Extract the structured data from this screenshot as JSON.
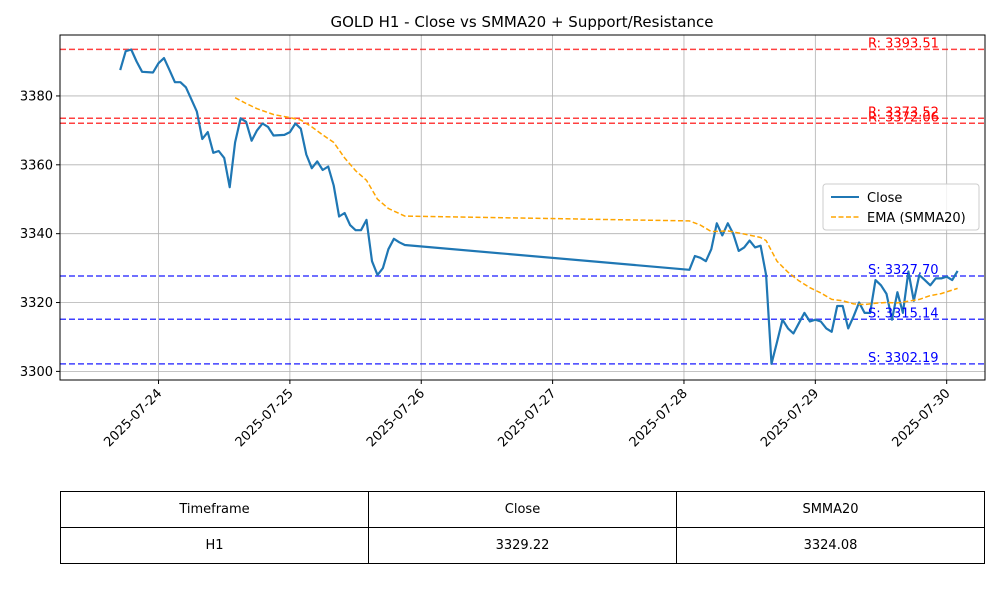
{
  "chart_data": {
    "type": "line",
    "title": "GOLD H1 - Close vs SMMA20 + Support/Resistance",
    "xlabel": "",
    "ylabel": "",
    "x_ticks": [
      "2025-07-24",
      "2025-07-25",
      "2025-07-26",
      "2025-07-27",
      "2025-07-28",
      "2025-07-29",
      "2025-07-30"
    ],
    "xlim": [
      "2025-07-23 06:00",
      "2025-07-30 07:00"
    ],
    "y_ticks": [
      3300,
      3320,
      3340,
      3360,
      3380
    ],
    "ylim": [
      3297.5,
      3397.7
    ],
    "grid": true,
    "legend_position": "center-right",
    "series": [
      {
        "name": "Close",
        "style": "solid",
        "color": "#1f77b4",
        "points": [
          [
            "2025-07-23 17:00",
            3387.5
          ],
          [
            "2025-07-23 18:00",
            3393.0
          ],
          [
            "2025-07-23 19:00",
            3393.5
          ],
          [
            "2025-07-23 20:00",
            3390.0
          ],
          [
            "2025-07-23 21:00",
            3387.0
          ],
          [
            "2025-07-23 23:00",
            3386.8
          ],
          [
            "2025-07-24 00:00",
            3389.5
          ],
          [
            "2025-07-24 01:00",
            3391.0
          ],
          [
            "2025-07-24 02:00",
            3387.5
          ],
          [
            "2025-07-24 03:00",
            3384.0
          ],
          [
            "2025-07-24 04:00",
            3384.0
          ],
          [
            "2025-07-24 05:00",
            3382.5
          ],
          [
            "2025-07-24 06:00",
            3379.0
          ],
          [
            "2025-07-24 07:00",
            3375.5
          ],
          [
            "2025-07-24 08:00",
            3367.5
          ],
          [
            "2025-07-24 09:00",
            3369.5
          ],
          [
            "2025-07-24 10:00",
            3363.5
          ],
          [
            "2025-07-24 11:00",
            3364.0
          ],
          [
            "2025-07-24 12:00",
            3362.0
          ],
          [
            "2025-07-24 13:00",
            3353.5
          ],
          [
            "2025-07-24 14:00",
            3366.5
          ],
          [
            "2025-07-24 15:00",
            3373.5
          ],
          [
            "2025-07-24 16:00",
            3372.5
          ],
          [
            "2025-07-24 17:00",
            3367.0
          ],
          [
            "2025-07-24 18:00",
            3370.0
          ],
          [
            "2025-07-24 19:00",
            3372.0
          ],
          [
            "2025-07-24 20:00",
            3371.0
          ],
          [
            "2025-07-24 21:00",
            3368.5
          ],
          [
            "2025-07-24 23:00",
            3368.7
          ],
          [
            "2025-07-25 00:00",
            3369.5
          ],
          [
            "2025-07-25 01:00",
            3372.0
          ],
          [
            "2025-07-25 02:00",
            3370.5
          ],
          [
            "2025-07-25 03:00",
            3363.0
          ],
          [
            "2025-07-25 04:00",
            3359.0
          ],
          [
            "2025-07-25 05:00",
            3361.0
          ],
          [
            "2025-07-25 06:00",
            3358.5
          ],
          [
            "2025-07-25 07:00",
            3359.5
          ],
          [
            "2025-07-25 08:00",
            3354.0
          ],
          [
            "2025-07-25 09:00",
            3345.0
          ],
          [
            "2025-07-25 10:00",
            3346.0
          ],
          [
            "2025-07-25 11:00",
            3342.5
          ],
          [
            "2025-07-25 12:00",
            3341.0
          ],
          [
            "2025-07-25 13:00",
            3341.0
          ],
          [
            "2025-07-25 14:00",
            3344.0
          ],
          [
            "2025-07-25 15:00",
            3332.0
          ],
          [
            "2025-07-25 16:00",
            3328.0
          ],
          [
            "2025-07-25 17:00",
            3330.0
          ],
          [
            "2025-07-25 18:00",
            3335.5
          ],
          [
            "2025-07-25 19:00",
            3338.5
          ],
          [
            "2025-07-25 20:00",
            3337.5
          ],
          [
            "2025-07-25 21:00",
            3336.7
          ],
          [
            "2025-07-28 01:00",
            3329.5
          ],
          [
            "2025-07-28 02:00",
            3333.5
          ],
          [
            "2025-07-28 03:00",
            3333.0
          ],
          [
            "2025-07-28 04:00",
            3332.0
          ],
          [
            "2025-07-28 05:00",
            3335.5
          ],
          [
            "2025-07-28 06:00",
            3343.0
          ],
          [
            "2025-07-28 07:00",
            3339.5
          ],
          [
            "2025-07-28 08:00",
            3343.0
          ],
          [
            "2025-07-28 09:00",
            3340.0
          ],
          [
            "2025-07-28 10:00",
            3335.0
          ],
          [
            "2025-07-28 11:00",
            3336.0
          ],
          [
            "2025-07-28 12:00",
            3338.0
          ],
          [
            "2025-07-28 13:00",
            3336.0
          ],
          [
            "2025-07-28 14:00",
            3336.5
          ],
          [
            "2025-07-28 15:00",
            3328.0
          ],
          [
            "2025-07-28 16:00",
            3302.2
          ],
          [
            "2025-07-28 17:00",
            3308.5
          ],
          [
            "2025-07-28 18:00",
            3315.0
          ],
          [
            "2025-07-28 19:00",
            3312.5
          ],
          [
            "2025-07-28 20:00",
            3311.0
          ],
          [
            "2025-07-28 21:00",
            3314.0
          ],
          [
            "2025-07-28 22:00",
            3317.0
          ],
          [
            "2025-07-28 23:00",
            3314.5
          ],
          [
            "2025-07-29 00:00",
            3315.0
          ],
          [
            "2025-07-29 01:00",
            3314.5
          ],
          [
            "2025-07-29 02:00",
            3312.5
          ],
          [
            "2025-07-29 03:00",
            3311.5
          ],
          [
            "2025-07-29 04:00",
            3319.0
          ],
          [
            "2025-07-29 05:00",
            3319.0
          ],
          [
            "2025-07-29 06:00",
            3312.5
          ],
          [
            "2025-07-29 07:00",
            3316.0
          ],
          [
            "2025-07-29 08:00",
            3320.0
          ],
          [
            "2025-07-29 09:00",
            3317.0
          ],
          [
            "2025-07-29 10:00",
            3317.0
          ],
          [
            "2025-07-29 11:00",
            3326.5
          ],
          [
            "2025-07-29 12:00",
            3325.0
          ],
          [
            "2025-07-29 13:00",
            3322.5
          ],
          [
            "2025-07-29 14:00",
            3315.0
          ],
          [
            "2025-07-29 15:00",
            3323.0
          ],
          [
            "2025-07-29 16:00",
            3317.0
          ],
          [
            "2025-07-29 17:00",
            3329.0
          ],
          [
            "2025-07-29 18:00",
            3320.5
          ],
          [
            "2025-07-29 19:00",
            3328.0
          ],
          [
            "2025-07-29 20:00",
            3326.5
          ],
          [
            "2025-07-29 21:00",
            3325.0
          ],
          [
            "2025-07-29 22:00",
            3327.0
          ],
          [
            "2025-07-29 23:00",
            3327.0
          ],
          [
            "2025-07-30 00:00",
            3327.5
          ],
          [
            "2025-07-30 01:00",
            3326.5
          ],
          [
            "2025-07-30 02:00",
            3329.2
          ]
        ]
      },
      {
        "name": "EMA (SMMA20)",
        "style": "dashed",
        "color": "#ffa500",
        "points": [
          [
            "2025-07-24 14:00",
            3379.5
          ],
          [
            "2025-07-24 16:00",
            3377.8
          ],
          [
            "2025-07-24 18:00",
            3376.3
          ],
          [
            "2025-07-24 21:00",
            3374.6
          ],
          [
            "2025-07-25 00:00",
            3373.7
          ],
          [
            "2025-07-25 02:00",
            3373.0
          ],
          [
            "2025-07-25 04:00",
            3371.0
          ],
          [
            "2025-07-25 06:00",
            3368.7
          ],
          [
            "2025-07-25 08:00",
            3366.5
          ],
          [
            "2025-07-25 10:00",
            3362.0
          ],
          [
            "2025-07-25 12:00",
            3358.3
          ],
          [
            "2025-07-25 14:00",
            3355.5
          ],
          [
            "2025-07-25 16:00",
            3350.0
          ],
          [
            "2025-07-25 18:00",
            3347.3
          ],
          [
            "2025-07-25 21:00",
            3345.1
          ],
          [
            "2025-07-28 01:00",
            3343.7
          ],
          [
            "2025-07-28 03:00",
            3342.5
          ],
          [
            "2025-07-28 05:00",
            3340.6
          ],
          [
            "2025-07-28 08:00",
            3340.8
          ],
          [
            "2025-07-28 11:00",
            3339.9
          ],
          [
            "2025-07-28 14:00",
            3338.9
          ],
          [
            "2025-07-28 15:00",
            3338.0
          ],
          [
            "2025-07-28 17:00",
            3332.0
          ],
          [
            "2025-07-28 19:00",
            3328.8
          ],
          [
            "2025-07-28 21:00",
            3326.3
          ],
          [
            "2025-07-28 23:00",
            3324.3
          ],
          [
            "2025-07-29 01:00",
            3322.8
          ],
          [
            "2025-07-29 03:00",
            3320.9
          ],
          [
            "2025-07-29 05:00",
            3320.5
          ],
          [
            "2025-07-29 07:00",
            3319.6
          ],
          [
            "2025-07-29 09:00",
            3319.4
          ],
          [
            "2025-07-29 11:00",
            3319.8
          ],
          [
            "2025-07-29 13:00",
            3320.0
          ],
          [
            "2025-07-29 15:00",
            3319.9
          ],
          [
            "2025-07-29 17:00",
            3320.4
          ],
          [
            "2025-07-29 19:00",
            3320.9
          ],
          [
            "2025-07-29 21:00",
            3322.0
          ],
          [
            "2025-07-29 23:00",
            3322.6
          ],
          [
            "2025-07-30 02:00",
            3324.1
          ]
        ]
      }
    ],
    "resistance_levels": [
      {
        "value": 3393.51,
        "label": "R: 3393.51",
        "color": "#ff0000"
      },
      {
        "value": 3373.52,
        "label": "R: 3373.52",
        "color": "#ff0000"
      },
      {
        "value": 3372.06,
        "label": "R: 3372.06",
        "color": "#ff0000"
      }
    ],
    "support_levels": [
      {
        "value": 3327.7,
        "label": "S: 3327.70",
        "color": "#0000ff"
      },
      {
        "value": 3315.14,
        "label": "S: 3315.14",
        "color": "#0000ff"
      },
      {
        "value": 3302.19,
        "label": "S: 3302.19",
        "color": "#0000ff"
      }
    ]
  },
  "table": {
    "headers": [
      "Timeframe",
      "Close",
      "SMMA20"
    ],
    "row": [
      "H1",
      "3329.22",
      "3324.08"
    ]
  }
}
